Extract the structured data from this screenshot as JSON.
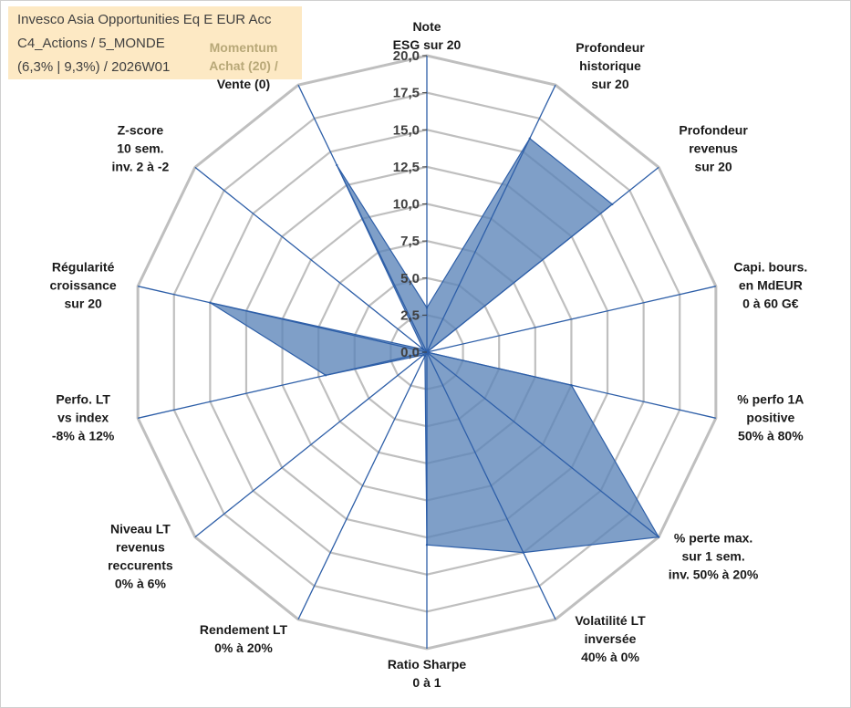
{
  "title_box": {
    "line1": "Invesco Asia Opportunities Eq E EUR Acc",
    "line2": "C4_Actions / 5_MONDE",
    "line3": "(6,3% | 9,3%) / 2026W01"
  },
  "colors": {
    "grid": "#bfbfbf",
    "spoke": "#2e5fa8",
    "fill": "#5b84b8",
    "title_bg": "#fde9c4"
  },
  "chart_data": {
    "type": "radar",
    "title": "Invesco Asia Opportunities Eq E EUR Acc",
    "rlim": [
      0,
      20
    ],
    "ticks": [
      "0,0",
      "2,5",
      "5,0",
      "7,5",
      "10,0",
      "12,5",
      "15,0",
      "17,5",
      "20,0"
    ],
    "grid": true,
    "axes": [
      {
        "lines": [
          "Note",
          "ESG sur 20"
        ]
      },
      {
        "lines": [
          "Profondeur",
          "historique",
          "sur 20"
        ]
      },
      {
        "lines": [
          "Profondeur",
          "revenus",
          "sur 20"
        ]
      },
      {
        "lines": [
          "Capi. bours.",
          "en MdEUR",
          "0 à 60 G€"
        ]
      },
      {
        "lines": [
          "% perfo 1A",
          "positive",
          "50% à 80%"
        ]
      },
      {
        "lines": [
          "% perte max.",
          "sur 1 sem.",
          "inv. 50% à 20%"
        ]
      },
      {
        "lines": [
          "Volatilité LT",
          "inversée",
          "40% à 0%"
        ]
      },
      {
        "lines": [
          "Ratio Sharpe",
          "0 à 1"
        ]
      },
      {
        "lines": [
          "Rendement LT",
          "0% à 20%"
        ]
      },
      {
        "lines": [
          "Niveau LT",
          "revenus",
          "reccurents",
          "0% à 6%"
        ]
      },
      {
        "lines": [
          "Perfo. LT",
          "vs index",
          "-8% à 12%"
        ]
      },
      {
        "lines": [
          "Régularité",
          "croissance",
          "sur 20"
        ]
      },
      {
        "lines": [
          "Z-score",
          "10 sem.",
          "inv. 2 à -2"
        ]
      },
      {
        "lines": [
          "Momentum",
          "Achat (20) /",
          "Vente (0)"
        ]
      }
    ],
    "series": [
      {
        "name": "Invesco Asia Opportunities Eq E EUR Acc",
        "values": [
          3.0,
          16.0,
          16.0,
          0.0,
          10.0,
          20.0,
          15.0,
          13.0,
          0.3,
          0.3,
          7.0,
          15.0,
          0.3,
          14.0
        ]
      }
    ]
  }
}
